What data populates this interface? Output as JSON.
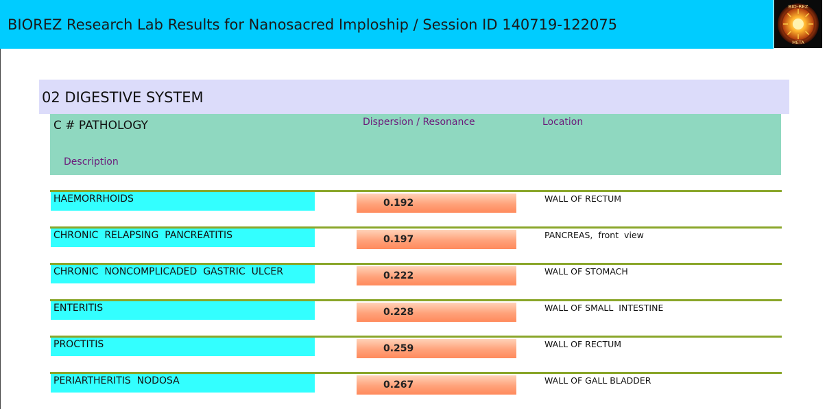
{
  "header": {
    "title": "BIOREZ Research Lab Results for Nanosacred Imploship / Session ID 140719-122075",
    "logo_text": "BIO-REZ",
    "logo_subtext": "META"
  },
  "section": {
    "title": "02 DIGESTIVE SYSTEM"
  },
  "table_header": {
    "pathology": "C # PATHOLOGY",
    "dispersion": "Dispersion / Resonance",
    "location": "Location",
    "description": "Description"
  },
  "rows": [
    {
      "name": "HAEMORRHOIDS",
      "value": "0.192",
      "location": "WALL OF RECTUM"
    },
    {
      "name": "CHRONIC  RELAPSING  PANCREATITIS",
      "value": "0.197",
      "location": "PANCREAS,  front  view"
    },
    {
      "name": "CHRONIC  NONCOMPLICADED  GASTRIC  ULCER",
      "value": "0.222",
      "location": "WALL OF STOMACH"
    },
    {
      "name": "ENTERITIS",
      "value": "0.228",
      "location": "WALL OF SMALL  INTESTINE"
    },
    {
      "name": "PROCTITIS",
      "value": "0.259",
      "location": "WALL OF RECTUM"
    },
    {
      "name": "PERIARTHERITIS  NODOSA",
      "value": "0.267",
      "location": "WALL OF GALL BLADDER"
    }
  ]
}
